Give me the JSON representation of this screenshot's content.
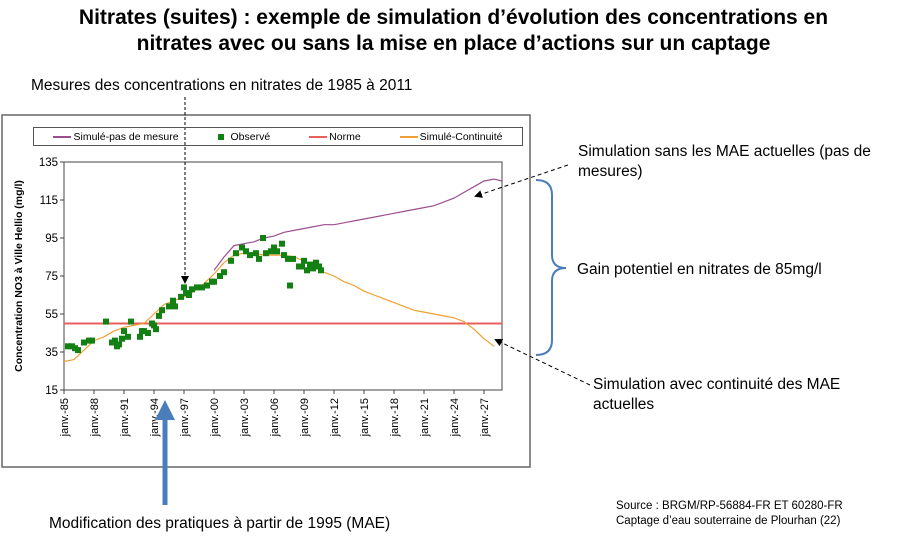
{
  "title_line1": "Nitrates (suites) : exemple de simulation d’évolution des concentrations en",
  "title_line2": "nitrates avec ou sans la mise en place d’actions sur un captage",
  "annotations": {
    "mesures": "Mesures des concentrations en nitrates de 1985 à 2011",
    "sans_mae": "Simulation sans les MAE actuelles (pas de mesures)",
    "gain": "Gain potentiel en nitrates de 85mg/l",
    "avec_mae": "Simulation avec continuité des MAE actuelles",
    "modification": "Modification des pratiques à partir de 1995 (MAE)"
  },
  "source_line1": "Source : BRGM/RP-56884-FR  ET 60280-FR",
  "source_line2": "Captage d’eau souterraine de Plourhan (22)",
  "chart_data": {
    "type": "line",
    "title": "",
    "xlabel": "",
    "ylabel": "Concentration NO3 à Ville Hellio (mg/l)",
    "ylim": [
      15,
      135
    ],
    "xlim": [
      1985,
      2028.8
    ],
    "yticks": [
      "135",
      "115",
      "95",
      "75",
      "55",
      "35",
      "15"
    ],
    "xticks": [
      "janv.-85",
      "janv.-88",
      "janv.-91",
      "janv.-94",
      "janv.-97",
      "janv.-00",
      "janv.-03",
      "janv.-06",
      "janv.-09",
      "janv.-12",
      "janv.-15",
      "janv.-18",
      "janv.-21",
      "janv.-24",
      "janv.-27"
    ],
    "grid": false,
    "legend_position": "top",
    "series": [
      {
        "name": "Simulé-pas de mesure",
        "type": "line",
        "color": "#9b4f8f",
        "x": [
          2000,
          2001,
          2002,
          2003,
          2004,
          2005,
          2006,
          2007,
          2008,
          2009,
          2010,
          2011,
          2012,
          2013,
          2014,
          2015,
          2016,
          2017,
          2018,
          2019,
          2020,
          2021,
          2022,
          2023,
          2024,
          2025,
          2026,
          2027,
          2028,
          2028.8
        ],
        "y": [
          78,
          85,
          91,
          92,
          93,
          95,
          96,
          98,
          99,
          100,
          101,
          102,
          102,
          103,
          104,
          105,
          106,
          107,
          108,
          109,
          110,
          111,
          112,
          114,
          116,
          119,
          122,
          125,
          126,
          125
        ]
      },
      {
        "name": "Observé",
        "type": "scatter",
        "color": "#138013",
        "x": [
          1985.4,
          1985.8,
          1986.1,
          1986.4,
          1987.0,
          1987.5,
          1987.8,
          1989.2,
          1989.8,
          1990.1,
          1990.3,
          1990.5,
          1990.8,
          1991.0,
          1991.4,
          1991.7,
          1992.6,
          1992.8,
          1993.0,
          1993.4,
          1993.8,
          1994.0,
          1994.2,
          1994.5,
          1994.8,
          1995.5,
          1995.9,
          1996.1,
          1996.7,
          1997.0,
          1997.2,
          1997.5,
          1997.8,
          1998.3,
          1998.8,
          1999.3,
          1999.8,
          2000.0,
          2000.6,
          2001.0,
          2001.7,
          2002.2,
          2002.8,
          2003.2,
          2003.6,
          2004.2,
          2004.5,
          2004.9,
          2005.2,
          2005.7,
          2006.0,
          2006.3,
          2006.8,
          2007.0,
          2007.4,
          2007.6,
          2007.9,
          2008.5,
          2008.8,
          2009.0,
          2009.3,
          2009.6,
          2009.9,
          2010.2,
          2010.5,
          2010.7
        ],
        "y": [
          38,
          38,
          37,
          36,
          40,
          41,
          41,
          51,
          40,
          41,
          38,
          39,
          42,
          46,
          43,
          51,
          43,
          46,
          46,
          45,
          50,
          49,
          47,
          54,
          57,
          59,
          62,
          59,
          64,
          69,
          66,
          65,
          68,
          69,
          69,
          70,
          72,
          72,
          75,
          77,
          83,
          87,
          90,
          88,
          86,
          87,
          84,
          95,
          87,
          88,
          90,
          88,
          92,
          86,
          84,
          70,
          84,
          80,
          80,
          83,
          78,
          81,
          79,
          82,
          80,
          78
        ]
      },
      {
        "name": "Norme",
        "type": "line",
        "color": "#e8605c",
        "x": [
          1985,
          2028.8
        ],
        "y": [
          50,
          50
        ]
      },
      {
        "name": "Simulé-Continuité",
        "type": "line",
        "color": "#f0a030",
        "x": [
          1985,
          1986,
          1987,
          1988,
          1989,
          1990,
          1991,
          1992,
          1993,
          1994,
          1995,
          1996,
          1997,
          1998,
          1999,
          2000,
          2001,
          2002,
          2003,
          2004,
          2005,
          2006,
          2007,
          2008,
          2009,
          2010,
          2011,
          2012,
          2013,
          2014,
          2015,
          2016,
          2017,
          2018,
          2019,
          2020,
          2021,
          2022,
          2023,
          2024,
          2025,
          2026,
          2027,
          2028
        ],
        "y": [
          30,
          31,
          36,
          41,
          43,
          46,
          48,
          49,
          50,
          55,
          60,
          62,
          64,
          67,
          71,
          76,
          82,
          86,
          87,
          87,
          86,
          86,
          86,
          85,
          83,
          80,
          77,
          75,
          72,
          70,
          67,
          65,
          63,
          61,
          59,
          57,
          56,
          55,
          54,
          53,
          51,
          47,
          42,
          38
        ]
      }
    ]
  }
}
